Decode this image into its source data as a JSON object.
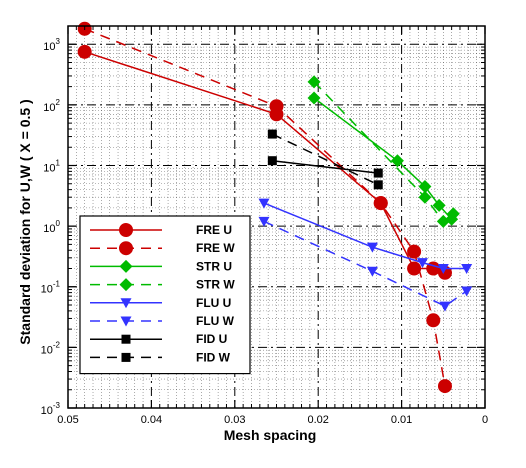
{
  "chart_data": {
    "type": "line",
    "xlabel": "Mesh spacing",
    "ylabel": "Standard deviation for U,W ( X = 0.5 )",
    "xlim": [
      0.05,
      0
    ],
    "ylim": [
      0.001,
      2000
    ],
    "y_scale": "log",
    "x_ticks": [
      {
        "value": 0.05,
        "label": "0.05"
      },
      {
        "value": 0.04,
        "label": "0.04"
      },
      {
        "value": 0.03,
        "label": "0.03"
      },
      {
        "value": 0.02,
        "label": "0.02"
      },
      {
        "value": 0.01,
        "label": "0.01"
      },
      {
        "value": 0,
        "label": "0"
      }
    ],
    "y_ticks": [
      {
        "value": 0.001,
        "base": "10",
        "exp": "-3"
      },
      {
        "value": 0.01,
        "base": "10",
        "exp": "-2"
      },
      {
        "value": 0.1,
        "base": "10",
        "exp": "-1"
      },
      {
        "value": 1,
        "base": "10",
        "exp": "0"
      },
      {
        "value": 10,
        "base": "10",
        "exp": "1"
      },
      {
        "value": 100,
        "base": "10",
        "exp": "2"
      },
      {
        "value": 1000,
        "base": "10",
        "exp": "3"
      }
    ],
    "grid": true,
    "legend_position": "lower-left",
    "series": [
      {
        "name": "FRE U",
        "color": "#cc0000",
        "dash": "solid",
        "marker": "circle",
        "points": [
          [
            0.048,
            750
          ],
          [
            0.025,
            70
          ],
          [
            0.0125,
            2.4
          ],
          [
            0.0085,
            0.2
          ],
          [
            0.0062,
            0.2
          ],
          [
            0.0048,
            0.17
          ]
        ]
      },
      {
        "name": "FRE W",
        "color": "#cc0000",
        "dash": "dashed",
        "marker": "circle",
        "points": [
          [
            0.048,
            1800
          ],
          [
            0.025,
            95
          ],
          [
            0.0125,
            2.4
          ],
          [
            0.0085,
            0.38
          ],
          [
            0.0062,
            0.028
          ],
          [
            0.0048,
            0.0023
          ]
        ]
      },
      {
        "name": "STR U",
        "color": "#00bb00",
        "dash": "solid",
        "marker": "diamond",
        "points": [
          [
            0.0205,
            130
          ],
          [
            0.0105,
            12
          ],
          [
            0.0072,
            4.5
          ],
          [
            0.0055,
            2.2
          ],
          [
            0.004,
            1.3
          ]
        ]
      },
      {
        "name": "STR W",
        "color": "#00bb00",
        "dash": "dashed",
        "marker": "diamond",
        "points": [
          [
            0.0205,
            240
          ],
          [
            0.0072,
            3
          ],
          [
            0.005,
            1.2
          ],
          [
            0.0038,
            1.6
          ]
        ]
      },
      {
        "name": "FLU U",
        "color": "#3333ff",
        "dash": "solid",
        "marker": "triangle-down",
        "points": [
          [
            0.0265,
            2.4
          ],
          [
            0.0135,
            0.45
          ],
          [
            0.0075,
            0.25
          ],
          [
            0.005,
            0.2
          ],
          [
            0.0022,
            0.2
          ]
        ]
      },
      {
        "name": "FLU W",
        "color": "#3333ff",
        "dash": "dashed",
        "marker": "triangle-down",
        "points": [
          [
            0.0265,
            1.2
          ],
          [
            0.0135,
            0.18
          ],
          [
            0.0048,
            0.048
          ],
          [
            0.0022,
            0.085
          ]
        ]
      },
      {
        "name": "FID U",
        "color": "#000000",
        "dash": "solid",
        "marker": "square",
        "points": [
          [
            0.0255,
            12
          ],
          [
            0.0128,
            7.5
          ]
        ]
      },
      {
        "name": "FID W",
        "color": "#000000",
        "dash": "dashed",
        "marker": "square",
        "points": [
          [
            0.0255,
            33
          ],
          [
            0.0128,
            4.8
          ]
        ]
      }
    ]
  }
}
